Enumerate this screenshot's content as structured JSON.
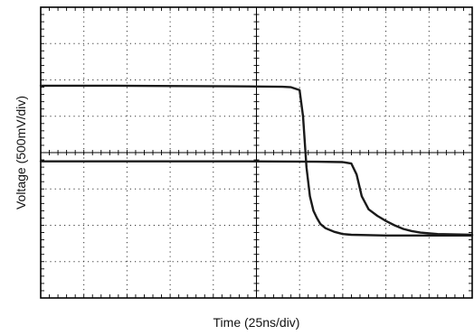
{
  "chart_data": {
    "type": "line",
    "title": "",
    "xlabel": "Time (25ns/div)",
    "ylabel": "Voltage (500mV/div)",
    "x_divisions": 10,
    "y_divisions": 8,
    "xlim": [
      0,
      250
    ],
    "ylim": [
      0,
      4000
    ],
    "grid": true,
    "legend": "none",
    "colors": {
      "trace": "#1a1a1a",
      "grid": "#333333",
      "frame": "#000000"
    },
    "series": [
      {
        "x": [
          0,
          40,
          80,
          120,
          140,
          145,
          150,
          152,
          154,
          156,
          158,
          160,
          162,
          165,
          170,
          175,
          180,
          200,
          250
        ],
        "y": [
          2920,
          2920,
          2915,
          2910,
          2905,
          2900,
          2860,
          2500,
          1800,
          1400,
          1200,
          1100,
          1020,
          960,
          910,
          880,
          870,
          860,
          860
        ]
      },
      {
        "x": [
          0,
          40,
          80,
          120,
          160,
          175,
          180,
          183,
          186,
          190,
          195,
          200,
          205,
          210,
          215,
          220,
          230,
          250
        ],
        "y": [
          1880,
          1880,
          1880,
          1880,
          1875,
          1870,
          1850,
          1700,
          1400,
          1220,
          1130,
          1060,
          1000,
          950,
          920,
          900,
          880,
          870
        ]
      }
    ]
  }
}
